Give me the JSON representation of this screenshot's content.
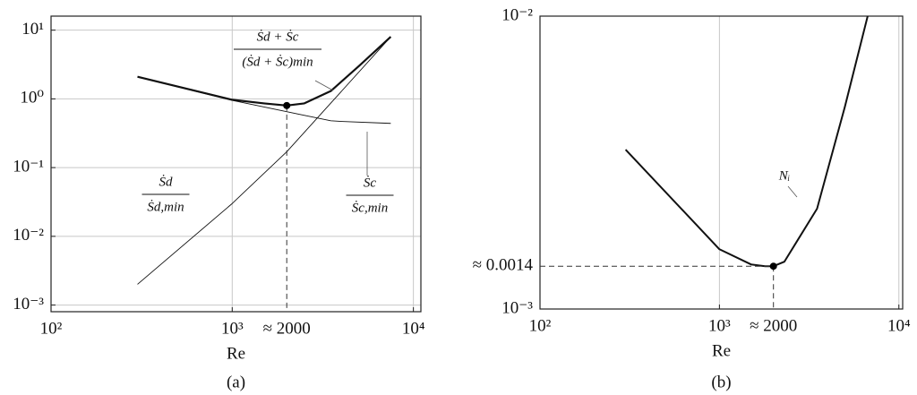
{
  "chart_data": [
    {
      "type": "line",
      "caption": "(a)",
      "xlabel": "Re",
      "xscale": "log",
      "yscale": "log",
      "grid": true,
      "xlim": [
        100,
        11000
      ],
      "ylim": [
        0.0008,
        16
      ],
      "xticks": [
        {
          "value": 100,
          "label": "10²"
        },
        {
          "value": 1000,
          "label": "10³"
        },
        {
          "value": 10000,
          "label": "10⁴"
        }
      ],
      "yticks": [
        {
          "value": 0.001,
          "label": "10⁻³"
        },
        {
          "value": 0.01,
          "label": "10⁻²"
        },
        {
          "value": 0.1,
          "label": "10⁻¹"
        },
        {
          "value": 1,
          "label": "10⁰"
        },
        {
          "value": 10,
          "label": "10¹"
        }
      ],
      "series": [
        {
          "color": "#111",
          "line_width": 2.2,
          "x": [
            300,
            1000,
            1500,
            2000,
            2500,
            3500,
            5000,
            7500
          ],
          "values": [
            2.1,
            0.97,
            0.86,
            0.8,
            0.86,
            1.3,
            3,
            8
          ]
        },
        {
          "color": "#111",
          "line_width": 0.9,
          "x": [
            300,
            1000,
            2000,
            3500,
            4000,
            7500
          ],
          "values": [
            2.1,
            0.95,
            0.65,
            0.48,
            0.47,
            0.44
          ]
        },
        {
          "color": "#111",
          "line_width": 0.9,
          "x": [
            300,
            1000,
            2000,
            7500
          ],
          "values": [
            0.002,
            0.03,
            0.17,
            8
          ]
        }
      ],
      "marker": {
        "x": 2000,
        "y": 0.8,
        "x_label": "≈ 2000"
      },
      "annotations": [
        {
          "numerator": "Ṡd + Ṡc",
          "denominator": "(Ṡd + Ṡc)min"
        },
        {
          "numerator": "Ṡd",
          "denominator": "Ṡd,min"
        },
        {
          "numerator": "Ṡc",
          "denominator": "Ṡc,min"
        }
      ]
    },
    {
      "type": "line",
      "caption": "(b)",
      "xlabel": "Re",
      "xscale": "log",
      "yscale": "log",
      "grid": true,
      "xlim": [
        100,
        10500
      ],
      "ylim": [
        0.001,
        0.01
      ],
      "xticks": [
        {
          "value": 100,
          "label": "10²"
        },
        {
          "value": 1000,
          "label": "10³"
        },
        {
          "value": 10000,
          "label": "10⁴"
        }
      ],
      "yticks": [
        {
          "value": 0.001,
          "label": "10⁻³"
        },
        {
          "value": 0.01,
          "label": "10⁻²"
        }
      ],
      "series": [
        {
          "color": "#111",
          "line_width": 2,
          "x": [
            300,
            1000,
            1500,
            1800,
            2000,
            2300,
            3500,
            5000,
            6700
          ],
          "values": [
            0.0035,
            0.0016,
            0.00142,
            0.0014,
            0.0014,
            0.00145,
            0.0022,
            0.0049,
            0.01
          ]
        }
      ],
      "marker": {
        "x": 2000,
        "y": 0.0014,
        "x_label": "≈ 2000",
        "y_label": "≈ 0.0014"
      },
      "annotations": [
        {
          "text": "Nᵢ"
        }
      ]
    }
  ]
}
